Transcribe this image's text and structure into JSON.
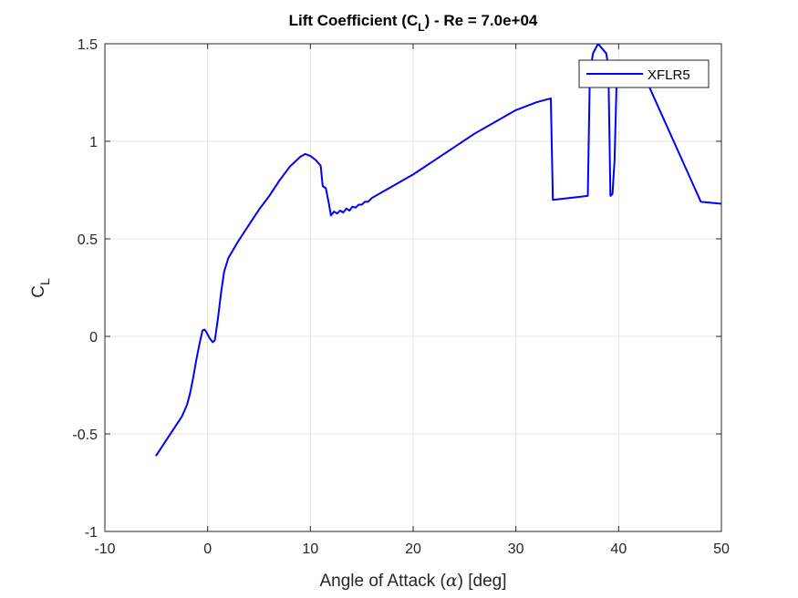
{
  "chart_data": {
    "type": "line",
    "title": {
      "prefix": "Lift Coefficient (C",
      "sub": "L",
      "suffix": ") - Re = 7.0e+04"
    },
    "xlabel": {
      "before": "Angle of Attack (",
      "symbol": "α",
      "after": ") [deg]"
    },
    "ylabel": {
      "main": "C",
      "sub": "L"
    },
    "xlim": [
      -10,
      50
    ],
    "ylim": [
      -1,
      1.5
    ],
    "xticks": [
      -10,
      0,
      10,
      20,
      30,
      40,
      50
    ],
    "yticks": [
      -1,
      -0.5,
      0,
      0.5,
      1,
      1.5
    ],
    "xtick_labels": [
      "-10",
      "0",
      "10",
      "20",
      "30",
      "40",
      "50"
    ],
    "ytick_labels": [
      "-1",
      "-0.5",
      "0",
      "0.5",
      "1",
      "1.5"
    ],
    "grid": true,
    "legend_position": "top-right",
    "series": [
      {
        "name": "XFLR5",
        "color": "#0000ff",
        "x": [
          -5,
          -4,
          -3,
          -2.5,
          -2,
          -1.7,
          -1.4,
          -1.1,
          -0.8,
          -0.5,
          -0.3,
          -0.1,
          0.2,
          0.5,
          0.7,
          1.0,
          1.3,
          1.6,
          2.0,
          3,
          4,
          5,
          6,
          7,
          8,
          9,
          9.5,
          10,
          10.5,
          11,
          11.2,
          11.5,
          11.8,
          12,
          12.3,
          12.6,
          12.9,
          13.2,
          13.5,
          13.8,
          14.1,
          14.4,
          14.7,
          15,
          15.3,
          15.6,
          16,
          17,
          18,
          19,
          20,
          22,
          24,
          26,
          28,
          30,
          32,
          33.4,
          33.6,
          37,
          37.2,
          37.5,
          38,
          38.8,
          39.0,
          39.2,
          39.4,
          39.6,
          39.8,
          40.0,
          41,
          42.8,
          48,
          50
        ],
        "y": [
          -0.61,
          -0.53,
          -0.45,
          -0.41,
          -0.35,
          -0.29,
          -0.21,
          -0.12,
          -0.04,
          0.03,
          0.035,
          0.02,
          -0.01,
          -0.03,
          -0.02,
          0.09,
          0.22,
          0.33,
          0.4,
          0.49,
          0.57,
          0.65,
          0.72,
          0.8,
          0.87,
          0.92,
          0.935,
          0.925,
          0.905,
          0.875,
          0.77,
          0.76,
          0.68,
          0.62,
          0.64,
          0.63,
          0.645,
          0.635,
          0.655,
          0.645,
          0.665,
          0.66,
          0.675,
          0.675,
          0.69,
          0.69,
          0.71,
          0.74,
          0.77,
          0.8,
          0.83,
          0.9,
          0.97,
          1.04,
          1.1,
          1.16,
          1.2,
          1.22,
          0.7,
          0.72,
          1.35,
          1.45,
          1.5,
          1.45,
          1.38,
          0.72,
          0.73,
          0.9,
          1.3,
          1.4,
          1.38,
          1.3,
          0.69,
          0.68
        ]
      }
    ]
  }
}
